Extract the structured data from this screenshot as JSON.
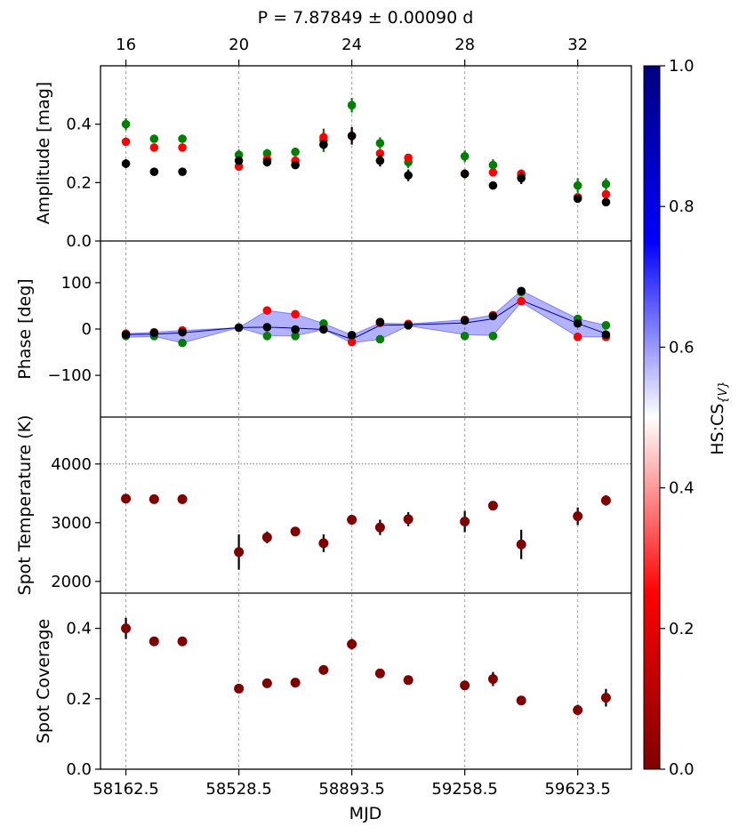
{
  "chart_data": {
    "type": "scatter",
    "title": "P = 7.87849 ± 0.00090 d",
    "xlabel": "MJD",
    "x_ticks": [
      58162.5,
      58528.5,
      58893.5,
      59258.5,
      59623.5
    ],
    "x_tick_labels": [
      "58162.5",
      "58528.5",
      "58893.5",
      "59258.5",
      "59623.5"
    ],
    "top_axis": {
      "label_values": [
        "16",
        "20",
        "24",
        "28",
        "32"
      ],
      "at_index": [
        16,
        20,
        24,
        28,
        32
      ]
    },
    "xlim_index": [
      15.1,
      33.9
    ],
    "cycle_index": [
      16,
      17,
      18,
      20,
      21,
      22,
      23,
      24,
      25,
      26,
      28,
      29,
      30,
      32,
      33
    ],
    "colorbar": {
      "label": "HS:CS",
      "label_sub": "{V}",
      "range": [
        0.0,
        1.0
      ],
      "ticks": [
        "0.0",
        "0.2",
        "0.4",
        "0.6",
        "0.8",
        "1.0"
      ],
      "colors": [
        "#800000",
        "#ff0000",
        "#ffffff",
        "#0000ff",
        "#000080"
      ]
    },
    "panels": {
      "amplitude": {
        "ylabel": "Amplitude [mag]",
        "ylim": [
          0.0,
          0.6
        ],
        "yticks": [
          "0.0",
          "0.2",
          "0.4"
        ],
        "series": [
          {
            "name": "green",
            "color": "#008000",
            "values": [
              0.4,
              0.35,
              0.35,
              0.295,
              0.3,
              0.305,
              0.345,
              0.465,
              0.335,
              0.27,
              0.29,
              0.26,
              0.225,
              0.19,
              0.195
            ],
            "errors": [
              0.02,
              0.008,
              0.012,
              0.018,
              0.015,
              0.015,
              0.04,
              0.025,
              0.02,
              0.02,
              0.02,
              0.02,
              0.015,
              0.025,
              0.02
            ]
          },
          {
            "name": "red",
            "color": "#ff0000",
            "values": [
              0.34,
              0.32,
              0.32,
              0.255,
              0.28,
              0.275,
              0.355,
              0.36,
              0.3,
              0.285,
              0.23,
              0.235,
              0.23,
              0.15,
              0.16
            ],
            "errors": [
              0.008,
              0.008,
              0.008,
              0.015,
              0.01,
              0.01,
              0.02,
              0.02,
              0.012,
              0.01,
              0.015,
              0.01,
              0.015,
              0.01,
              0.01
            ]
          },
          {
            "name": "black",
            "color": "#000000",
            "values": [
              0.265,
              0.237,
              0.237,
              0.275,
              0.27,
              0.26,
              0.33,
              0.36,
              0.275,
              0.225,
              0.23,
              0.19,
              0.215,
              0.145,
              0.133
            ],
            "errors": [
              0.015,
              0.005,
              0.005,
              0.012,
              0.015,
              0.012,
              0.015,
              0.03,
              0.02,
              0.02,
              0.015,
              0.012,
              0.02,
              0.01,
              0.008
            ]
          }
        ]
      },
      "phase": {
        "ylabel": "Phase [deg]",
        "ylim": [
          -190,
          190
        ],
        "yticks": [
          "−100",
          "0",
          "100"
        ],
        "ytick_values": [
          -100,
          0,
          100
        ],
        "band_color": "#0000ff",
        "mean_line": [
          -12,
          -11,
          -8,
          3,
          4,
          2,
          -1,
          -22,
          8,
          9,
          13,
          22,
          62,
          12,
          -10
        ],
        "band_low": [
          -18,
          -16,
          -30,
          3,
          -15,
          -15,
          -1,
          -30,
          -22,
          7,
          -12,
          -14,
          58,
          -17,
          -17
        ],
        "band_high": [
          -10,
          -7,
          -3,
          3,
          40,
          32,
          12,
          -13,
          13,
          11,
          20,
          30,
          83,
          22,
          8
        ],
        "series": [
          {
            "name": "green",
            "color": "#008000",
            "values": [
              -15,
              -15,
              -30,
              3,
              -15,
              -15,
              12,
              -15,
              -22,
              9,
              -15,
              -15,
              80,
              22,
              8
            ]
          },
          {
            "name": "red",
            "color": "#ff0000",
            "values": [
              -10,
              -7,
              -3,
              3,
              40,
              32,
              0,
              -28,
              13,
              11,
              20,
              30,
              60,
              -17,
              -17
            ]
          },
          {
            "name": "black",
            "color": "#000000",
            "values": [
              -12,
              -8,
              -7,
              3,
              4,
              -1,
              -1,
              -13,
              15,
              8,
              18,
              28,
              82,
              12,
              -12
            ]
          }
        ]
      },
      "spot_temperature": {
        "ylabel": "Spot Temperature (K)",
        "ylim": [
          1800,
          4800
        ],
        "yticks": [
          "2000",
          "3000",
          "4000"
        ],
        "ytick_values": [
          2000,
          3000,
          4000
        ],
        "reference_line": 4000,
        "marker_color": "#800000",
        "values": [
          3410,
          3400,
          3400,
          2500,
          2750,
          2850,
          2650,
          3050,
          2920,
          3060,
          3020,
          3290,
          2630,
          3110,
          3380
        ],
        "errors": [
          40,
          30,
          30,
          300,
          100,
          80,
          150,
          80,
          130,
          120,
          180,
          70,
          250,
          150,
          90
        ]
      },
      "spot_coverage": {
        "ylabel": "Spot Coverage",
        "ylim": [
          0.0,
          0.5
        ],
        "yticks": [
          "0.0",
          "0.2",
          "0.4"
        ],
        "marker_color": "#800000",
        "values": [
          0.4,
          0.363,
          0.363,
          0.229,
          0.244,
          0.246,
          0.282,
          0.355,
          0.272,
          0.253,
          0.238,
          0.256,
          0.195,
          0.168,
          0.203
        ],
        "errors": [
          0.03,
          0.005,
          0.005,
          0.005,
          0.005,
          0.005,
          0.005,
          0.015,
          0.005,
          0.01,
          0.01,
          0.02,
          0.005,
          0.015,
          0.025
        ]
      }
    }
  }
}
